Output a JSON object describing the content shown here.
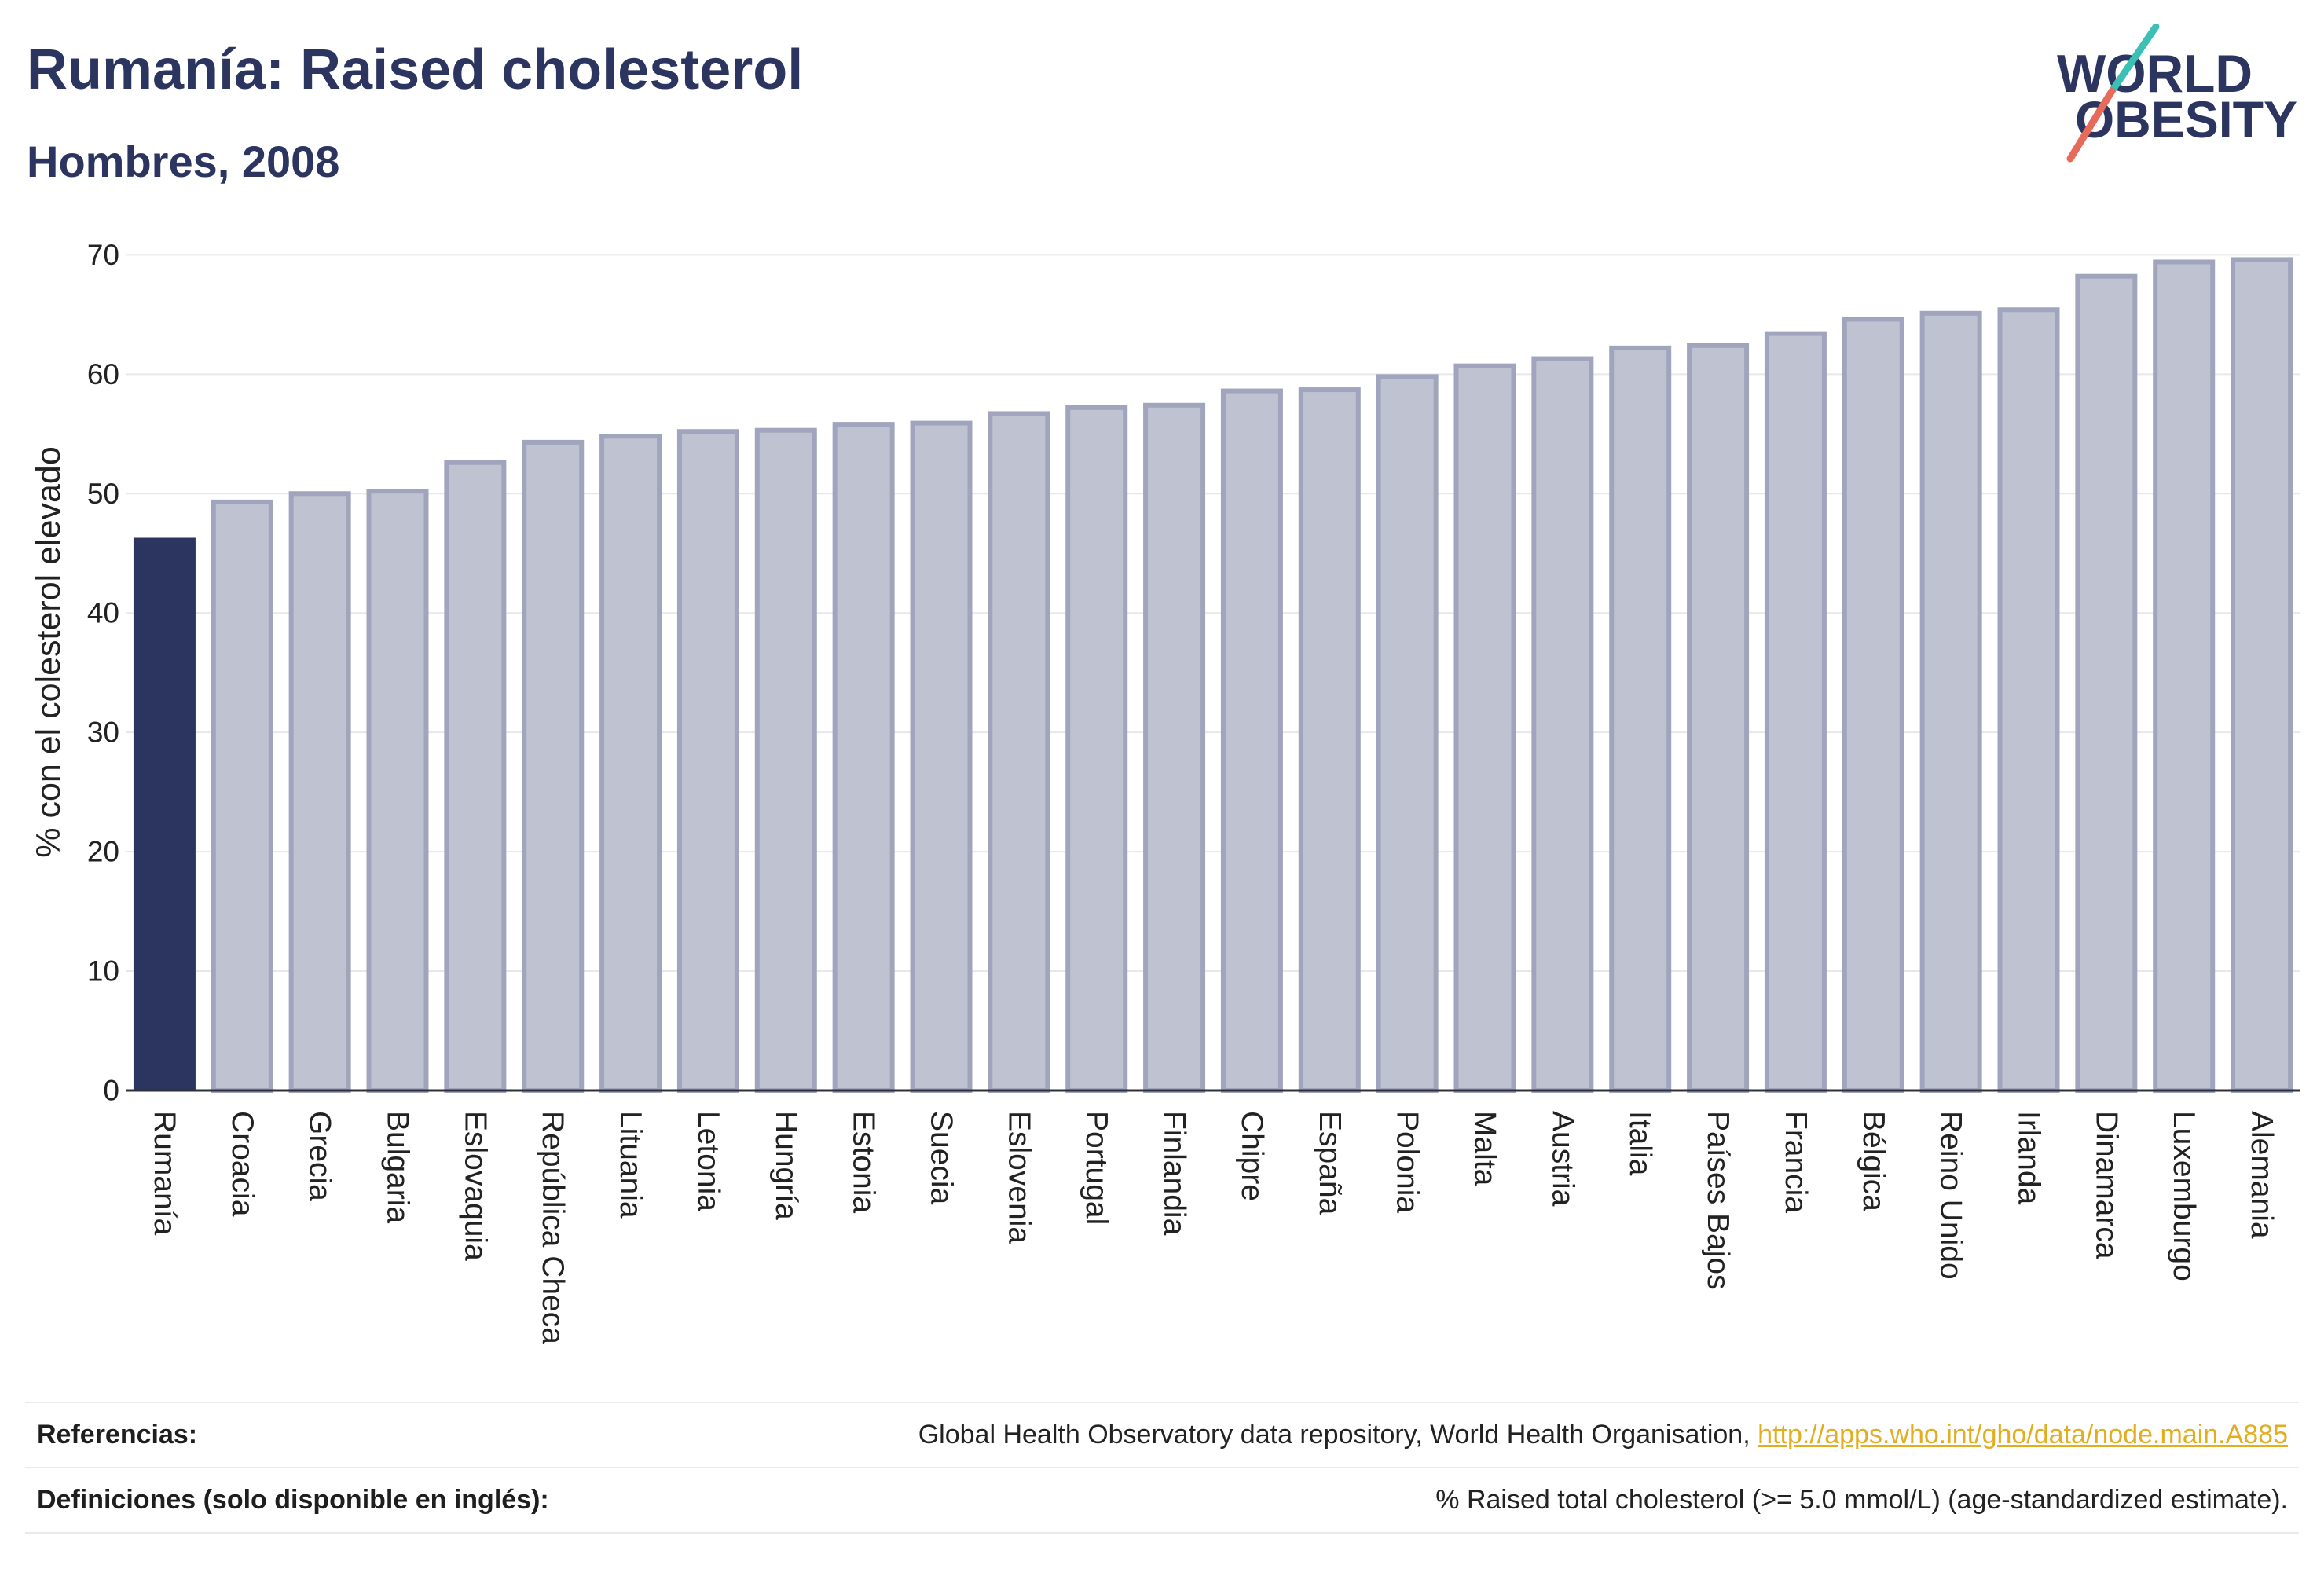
{
  "header": {
    "title": "Rumanía: Raised cholesterol",
    "subtitle": "Hombres, 2008"
  },
  "logo": {
    "line1": "WORLD",
    "line2": "OBESITY",
    "colors": {
      "text": "#2b3560",
      "slash_top": "#3cbfb4",
      "slash_bottom": "#e86a58"
    }
  },
  "chart_data": {
    "type": "bar",
    "title": "Rumanía: Raised cholesterol",
    "subtitle": "Hombres, 2008",
    "xlabel": "",
    "ylabel": "% con el colesterol elevado",
    "ylim": [
      0,
      72
    ],
    "yticks": [
      0,
      10,
      20,
      30,
      40,
      50,
      60,
      70
    ],
    "grid": true,
    "highlight": "Rumanía",
    "categories": [
      "Rumanía",
      "Croacia",
      "Grecia",
      "Bulgaria",
      "Eslovaquia",
      "República Checa",
      "Lituania",
      "Letonia",
      "Hungría",
      "Estonia",
      "Suecia",
      "Eslovenia",
      "Portugal",
      "Finlandia",
      "Chipre",
      "España",
      "Polonia",
      "Malta",
      "Austria",
      "Italia",
      "Países Bajos",
      "Francia",
      "Bélgica",
      "Reino Unido",
      "Irlanda",
      "Dinamarca",
      "Luxemburgo",
      "Alemania"
    ],
    "values": [
      46.3,
      49.5,
      50.2,
      50.4,
      52.8,
      54.5,
      55.0,
      55.4,
      55.5,
      56.0,
      56.1,
      56.9,
      57.4,
      57.6,
      58.8,
      58.9,
      60.0,
      60.9,
      61.5,
      62.4,
      62.6,
      63.6,
      64.8,
      65.3,
      65.6,
      68.4,
      69.6,
      69.8
    ],
    "colors": {
      "highlight": "#2b3560",
      "bar": "#bfc2d1",
      "bar_border": "#a0a5bd",
      "grid": "#e7e7ec",
      "axis": "#2f2f3a"
    }
  },
  "footer": {
    "references_label": "Referencias:",
    "references_text": "Global Health Observatory data repository, World Health Organisation,",
    "references_link": "http://apps.who.int/gho/data/node.main.A885",
    "definitions_label": "Definiciones (solo disponible en inglés):",
    "definitions_text": "% Raised total cholesterol (>= 5.0 mmol/L) (age-standardized estimate)."
  }
}
